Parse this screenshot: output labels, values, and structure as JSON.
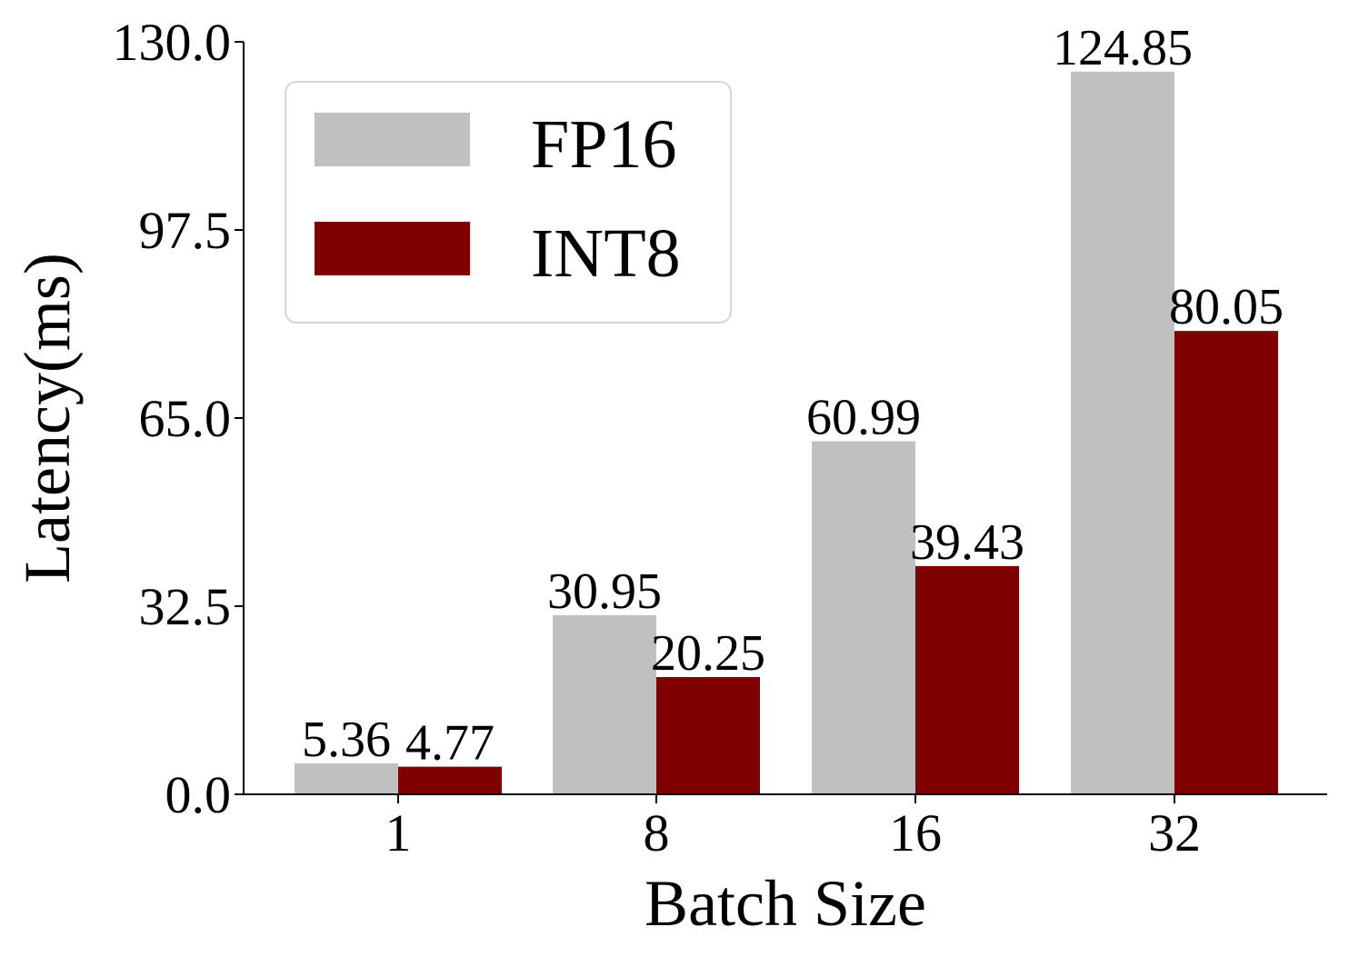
{
  "chart_data": {
    "type": "bar",
    "categories": [
      "1",
      "8",
      "16",
      "32"
    ],
    "series": [
      {
        "name": "FP16",
        "color": "#c0c0c0",
        "values": [
          5.36,
          30.95,
          60.99,
          124.85
        ]
      },
      {
        "name": "INT8",
        "color": "#7f0000",
        "values": [
          4.77,
          20.25,
          39.43,
          80.05
        ]
      }
    ],
    "data_labels": [
      [
        "5.36",
        "30.95",
        "60.99",
        "124.85"
      ],
      [
        "4.77",
        "20.25",
        "39.43",
        "80.05"
      ]
    ],
    "xlabel": "Batch Size",
    "ylabel": "Latency(ms)",
    "ylim": [
      0,
      130
    ],
    "yticks": [
      0.0,
      32.5,
      65.0,
      97.5,
      130.0
    ],
    "ytick_labels": [
      "0.0",
      "32.5",
      "65.0",
      "97.5",
      "130.0"
    ],
    "grid": false,
    "legend_position": "top-left"
  }
}
